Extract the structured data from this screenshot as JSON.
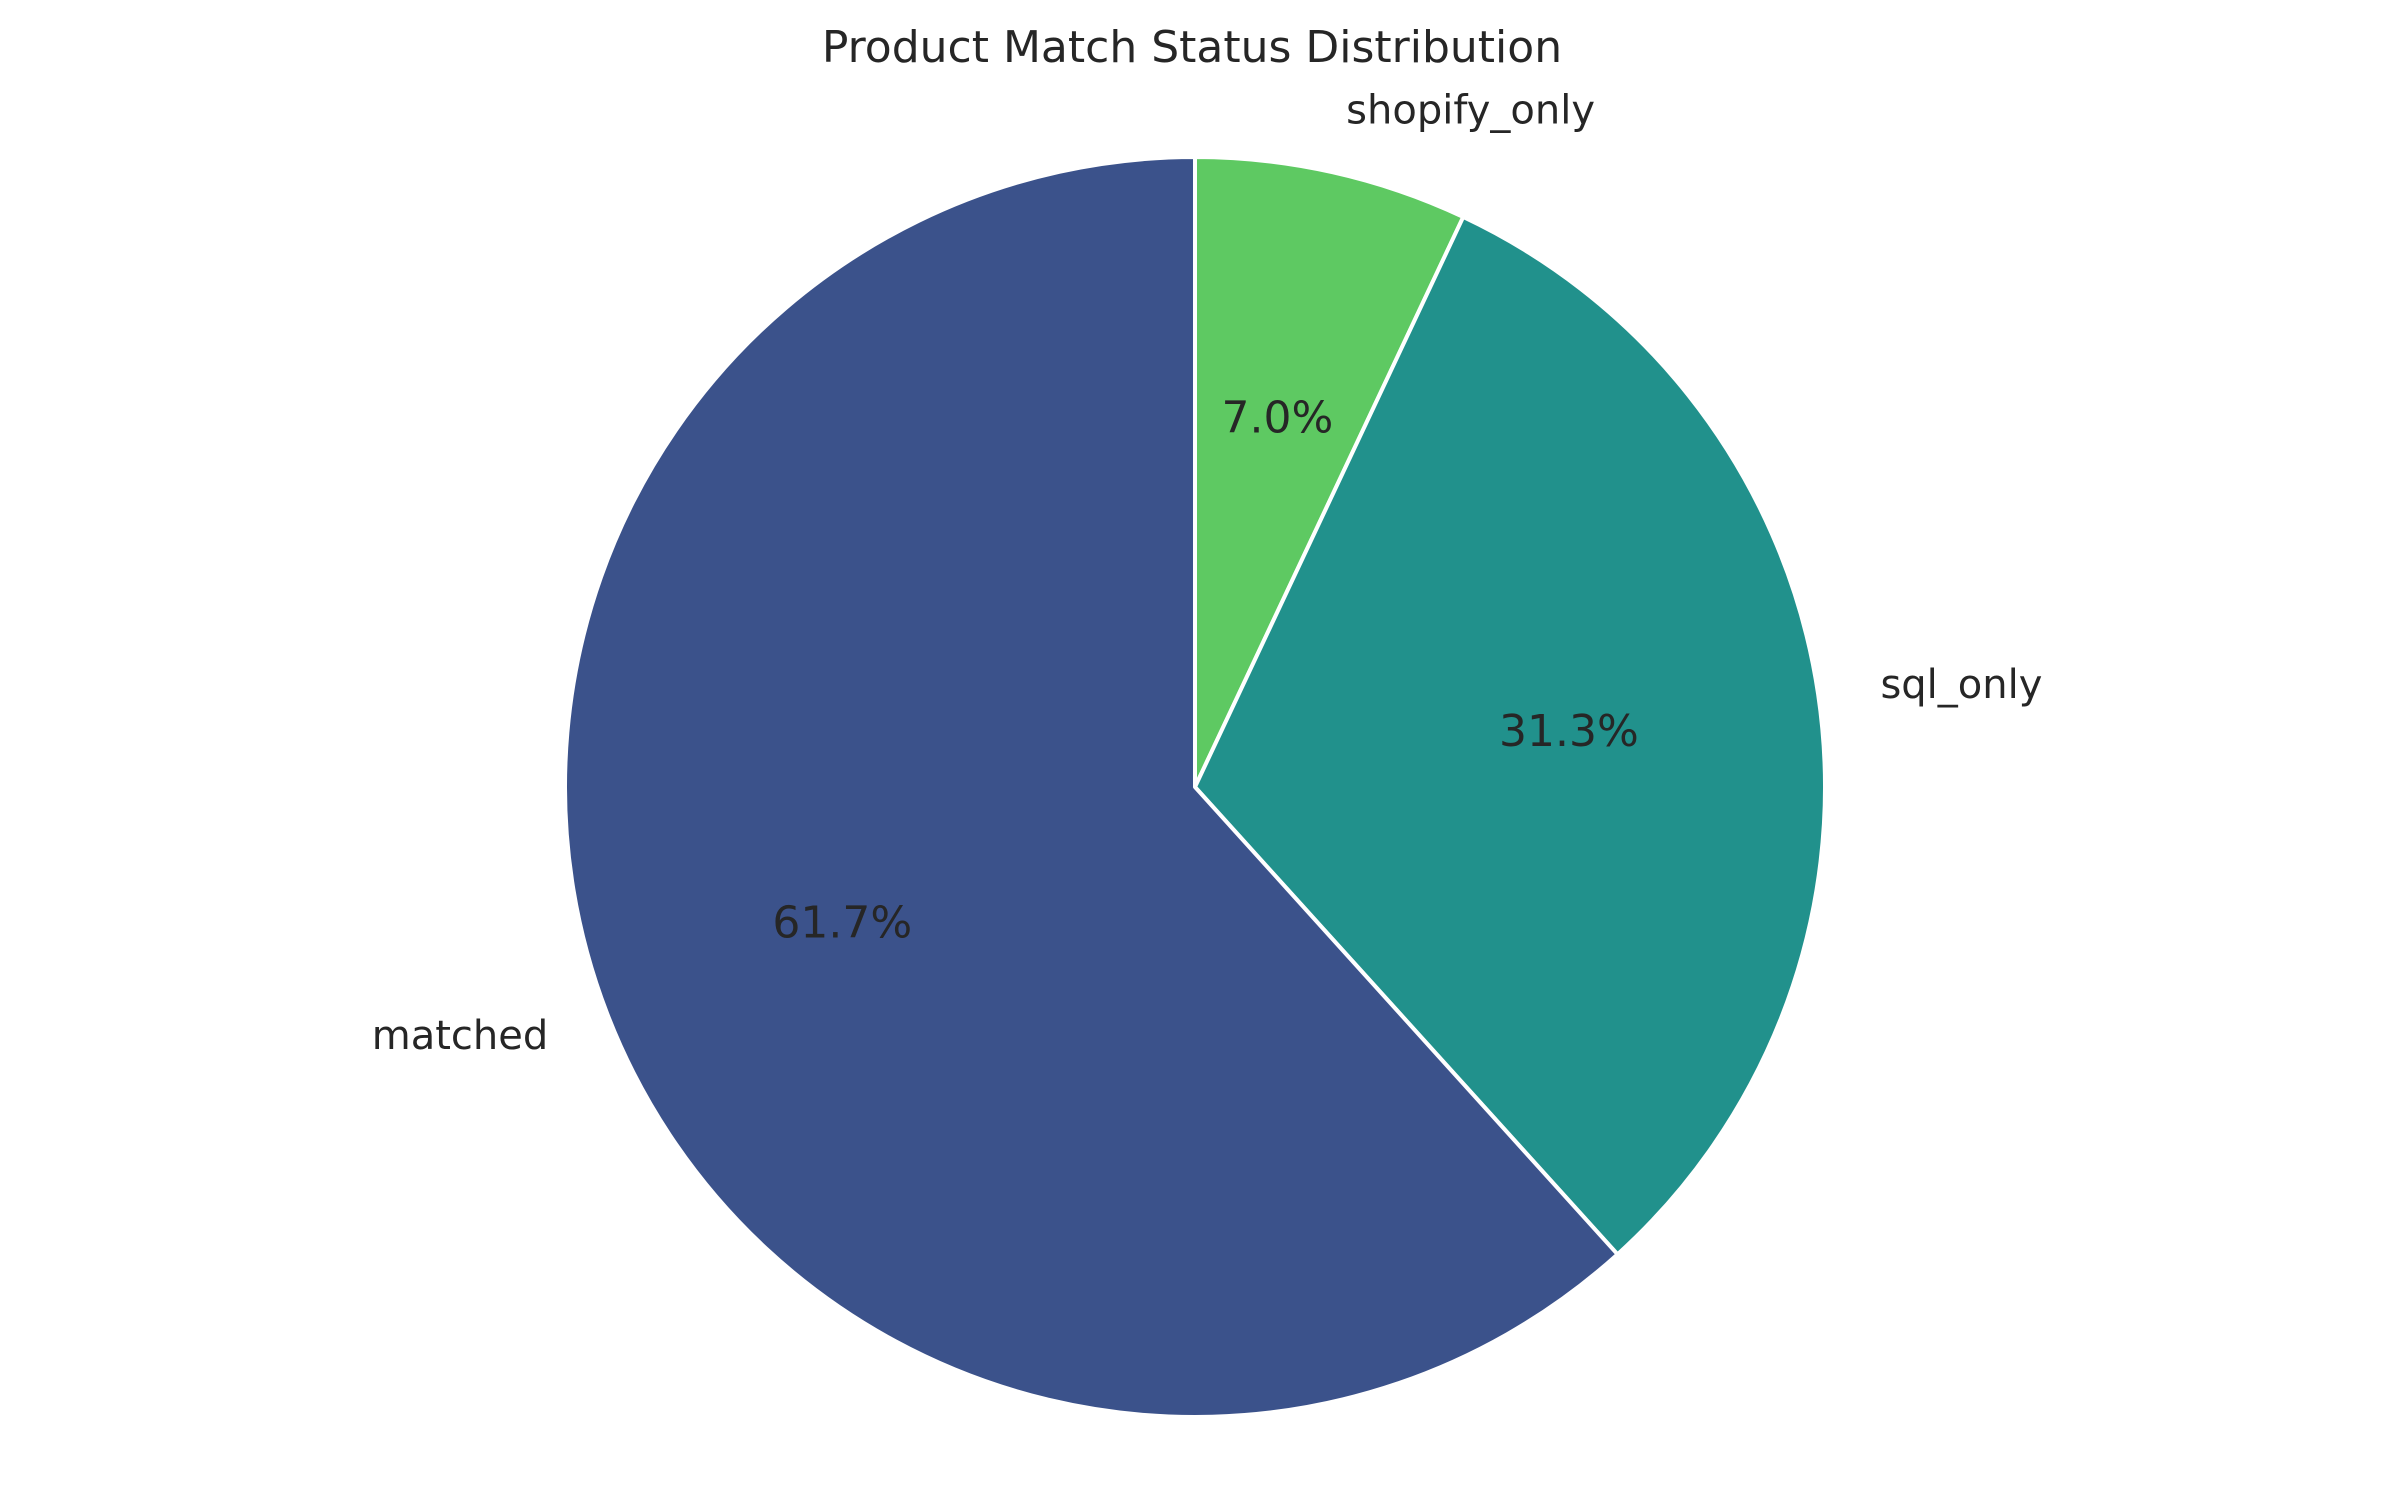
{
  "chart_data": {
    "type": "pie",
    "title": "Product Match Status Distribution",
    "labels": [
      "shopify_only",
      "sql_only",
      "matched"
    ],
    "values": [
      7.0,
      31.3,
      61.7
    ],
    "percent_labels": [
      "7.0%",
      "31.3%",
      "61.7%"
    ],
    "colors": [
      "#5ec962",
      "#21918c",
      "#3b528b"
    ],
    "start_angle_deg": 90,
    "direction": "clockwise",
    "edge_color": "#ffffff"
  }
}
